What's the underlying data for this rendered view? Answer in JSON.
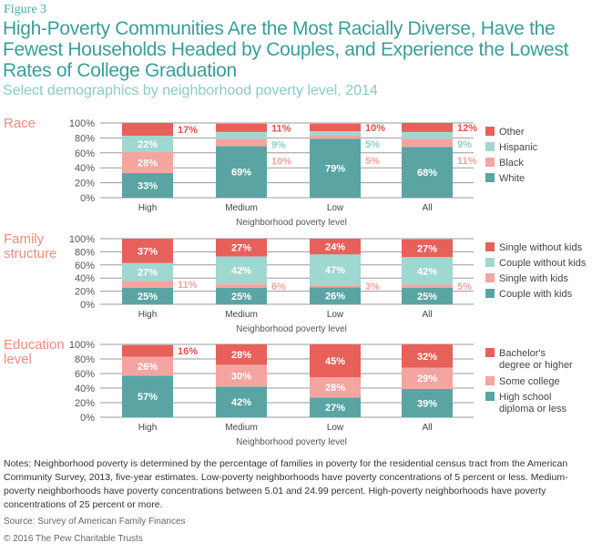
{
  "figure_label": "Figure 3",
  "title": "High-Poverty Communities Are the Most Racially Diverse, Have the Fewest Households Headed by Couples, and Experience the Lowest Rates of College Graduation",
  "subtitle": "Select demographics by neighborhood poverty level, 2014",
  "colors": {
    "red": "#e8605a",
    "teal_light": "#9fd8d0",
    "pink": "#f4a5a0",
    "teal": "#5aa5a3",
    "section_label": "#f08c80"
  },
  "chart_data": [
    {
      "type": "bar",
      "stacked": true,
      "title": "Race",
      "categories": [
        "High",
        "Medium",
        "Low",
        "All"
      ],
      "xlabel": "Neighborhood poverty level",
      "ylim": [
        0,
        100
      ],
      "yticks": [
        "0%",
        "20%",
        "40%",
        "60%",
        "80%",
        "100%"
      ],
      "legend_position": "right",
      "series": [
        {
          "name": "White",
          "color": "#5aa5a3",
          "values": [
            33,
            69,
            79,
            68
          ]
        },
        {
          "name": "Black",
          "color": "#f4a5a0",
          "values": [
            28,
            10,
            5,
            11
          ]
        },
        {
          "name": "Hispanic",
          "color": "#9fd8d0",
          "values": [
            22,
            9,
            5,
            9
          ]
        },
        {
          "name": "Other",
          "color": "#e8605a",
          "values": [
            17,
            11,
            10,
            12
          ]
        }
      ]
    },
    {
      "type": "bar",
      "stacked": true,
      "title": "Family structure",
      "categories": [
        "High",
        "Medium",
        "Low",
        "All"
      ],
      "xlabel": "Neighborhood poverty level",
      "ylim": [
        0,
        100
      ],
      "yticks": [
        "0%",
        "20%",
        "40%",
        "60%",
        "80%",
        "100%"
      ],
      "legend_position": "right",
      "series": [
        {
          "name": "Couple with kids",
          "color": "#5aa5a3",
          "values": [
            25,
            25,
            26,
            25
          ]
        },
        {
          "name": "Single with kids",
          "color": "#f4a5a0",
          "values": [
            11,
            6,
            3,
            5
          ]
        },
        {
          "name": "Couple without kids",
          "color": "#9fd8d0",
          "values": [
            27,
            42,
            47,
            42
          ]
        },
        {
          "name": "Single without kids",
          "color": "#e8605a",
          "values": [
            37,
            27,
            24,
            27
          ]
        }
      ]
    },
    {
      "type": "bar",
      "stacked": true,
      "title": "Education level",
      "categories": [
        "High",
        "Medium",
        "Low",
        "All"
      ],
      "xlabel": "Neighborhood poverty level",
      "ylim": [
        0,
        100
      ],
      "yticks": [
        "0%",
        "20%",
        "40%",
        "60%",
        "80%",
        "100%"
      ],
      "legend_position": "right",
      "series": [
        {
          "name": "High school diploma or less",
          "color": "#5aa5a3",
          "values": [
            57,
            42,
            27,
            39
          ]
        },
        {
          "name": "Some college",
          "color": "#f4a5a0",
          "values": [
            26,
            30,
            28,
            29
          ]
        },
        {
          "name": "Bachelor's degree or higher",
          "color": "#e8605a",
          "values": [
            16,
            28,
            45,
            32
          ]
        }
      ]
    }
  ],
  "notes": "Notes: Neighborhood poverty is determined by the percentage of families in poverty for the residential census tract from the American Community Survey, 2013, five-year estimates. Low-poverty neighborhoods have poverty concentrations of 5 percent or less. Medium-poverty neighborhoods have poverty concentrations between 5.01 and 24.99 percent. High-poverty neighborhoods have poverty concentrations of 25 percent or more.",
  "source": "Source: Survey of American Family Finances",
  "copyright": "© 2016 The Pew Charitable Trusts"
}
